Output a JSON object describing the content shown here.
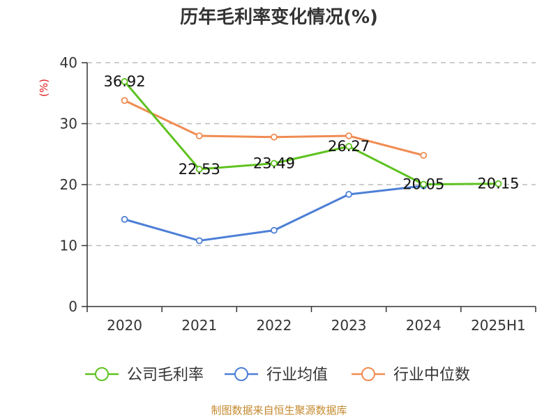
{
  "chart_data": {
    "type": "line",
    "title": "历年毛利率变化情况(%)",
    "ylabel": "(%)",
    "xlabel": "",
    "categories": [
      "2020",
      "2021",
      "2022",
      "2023",
      "2024",
      "2025H1"
    ],
    "ylim": [
      0,
      40
    ],
    "yticks": [
      0,
      10,
      20,
      30,
      40
    ],
    "grid": true,
    "legend_position": "bottom",
    "series": [
      {
        "name": "公司毛利率",
        "color": "#5ec21f",
        "values": [
          36.92,
          22.53,
          23.49,
          26.27,
          20.05,
          20.15
        ],
        "labels": [
          "36.92",
          "22.53",
          "23.49",
          "26.27",
          "20.05",
          "20.15"
        ]
      },
      {
        "name": "行业均值",
        "color": "#4d7fd6",
        "values": [
          14.3,
          10.8,
          12.5,
          18.4,
          19.8,
          null
        ],
        "labels": []
      },
      {
        "name": "行业中位数",
        "color": "#f08c52",
        "values": [
          33.8,
          28.0,
          27.8,
          28.0,
          24.8,
          null
        ],
        "labels": []
      }
    ]
  },
  "source": "制图数据来自恒生聚源数据库"
}
